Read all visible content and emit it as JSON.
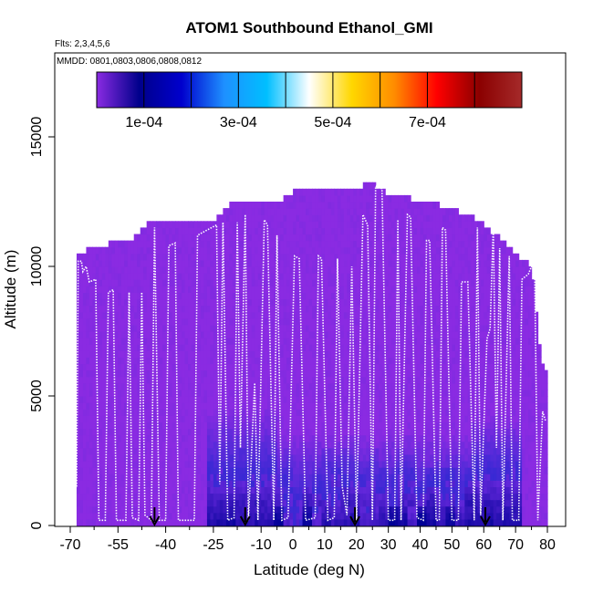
{
  "chart_data": {
    "type": "heatmap",
    "title": "ATOM1 Southbound Ethanol_GMI",
    "flights_note": "Flts: 2,3,4,5,6",
    "dates_note": "MMDD: 0801,0803,0806,0808,0812",
    "xlabel": "Latitude (deg N)",
    "ylabel": "Altitude (m)",
    "xlim": [
      -70,
      85
    ],
    "ylim": [
      0,
      17500
    ],
    "x_ticks": [
      "-70",
      "-55",
      "-40",
      "-25",
      "-10",
      "0",
      "10",
      "20",
      "30",
      "40",
      "50",
      "60",
      "70",
      "80"
    ],
    "x_tick_values": [
      -70,
      -55,
      -40,
      -25,
      -10,
      0,
      10,
      20,
      30,
      40,
      50,
      60,
      70,
      80
    ],
    "x_minor_ticks": [
      -62.5,
      -47.5,
      -32.5,
      -17.5,
      -5,
      5,
      15,
      25,
      35,
      45,
      55,
      65,
      75
    ],
    "y_ticks": [
      "0",
      "5000",
      "10000",
      "15000"
    ],
    "y_tick_values": [
      0,
      5000,
      10000,
      15000
    ],
    "colorbar": {
      "min": 0,
      "max": 0.0009,
      "boundaries": [
        0,
        0.0001,
        0.0002,
        0.0003,
        0.0004,
        0.0005,
        0.0006,
        0.0007,
        0.0008,
        0.0009
      ],
      "tick_labels": [
        "1e-04",
        "3e-04",
        "5e-04",
        "7e-04"
      ],
      "tick_values": [
        0.0001,
        0.0003,
        0.0005,
        0.0007
      ],
      "colors": [
        "#8a2be2",
        "#00008b",
        "#0000cd",
        "#1e90ff",
        "#00bfff",
        "#ffffff",
        "#ffd700",
        "#ff8c00",
        "#ff0000",
        "#8b0000",
        "#a52a2a"
      ]
    },
    "ceiling": [
      {
        "lat": -68,
        "alt": 10500
      },
      {
        "lat": -60,
        "alt": 10800
      },
      {
        "lat": -50,
        "alt": 11100
      },
      {
        "lat": -45,
        "alt": 11800
      },
      {
        "lat": -35,
        "alt": 11800
      },
      {
        "lat": -25,
        "alt": 11800
      },
      {
        "lat": -20,
        "alt": 12400
      },
      {
        "lat": -5,
        "alt": 12400
      },
      {
        "lat": 0,
        "alt": 12900
      },
      {
        "lat": 20,
        "alt": 12900
      },
      {
        "lat": 24,
        "alt": 13400
      },
      {
        "lat": 28,
        "alt": 12900
      },
      {
        "lat": 45,
        "alt": 12400
      },
      {
        "lat": 55,
        "alt": 12000
      },
      {
        "lat": 60,
        "alt": 11600
      },
      {
        "lat": 65,
        "alt": 11100
      },
      {
        "lat": 70,
        "alt": 10500
      },
      {
        "lat": 75,
        "alt": 10000
      },
      {
        "lat": 78,
        "alt": 6500
      },
      {
        "lat": 80,
        "alt": 5800
      }
    ],
    "flight_track": [
      [
        -68,
        1500
      ],
      [
        -67.5,
        10200
      ],
      [
        -66.5,
        10200
      ],
      [
        -66,
        9800
      ],
      [
        -65,
        10000
      ],
      [
        -64,
        9400
      ],
      [
        -62,
        9500
      ],
      [
        -61,
        200
      ],
      [
        -59,
        200
      ],
      [
        -58,
        9000
      ],
      [
        -56.5,
        9100
      ],
      [
        -55.5,
        200
      ],
      [
        -52.5,
        200
      ],
      [
        -51.5,
        9000
      ],
      [
        -50.5,
        300
      ],
      [
        -48.5,
        200
      ],
      [
        -47.5,
        9000
      ],
      [
        -46.5,
        400
      ],
      [
        -44.5,
        200
      ],
      [
        -43.5,
        11500
      ],
      [
        -42,
        200
      ],
      [
        -40,
        200
      ],
      [
        -39,
        10800
      ],
      [
        -37,
        10900
      ],
      [
        -36,
        200
      ],
      [
        -31,
        200
      ],
      [
        -30,
        11200
      ],
      [
        -27,
        11400
      ],
      [
        -24,
        11600
      ],
      [
        -23,
        1600
      ],
      [
        -22,
        11700
      ],
      [
        -20.5,
        200
      ],
      [
        -18.5,
        300
      ],
      [
        -17.5,
        11700
      ],
      [
        -16.5,
        3000
      ],
      [
        -15,
        12000
      ],
      [
        -14,
        200
      ],
      [
        -12,
        5500
      ],
      [
        -11,
        200
      ],
      [
        -9,
        11800
      ],
      [
        -8,
        11600
      ],
      [
        -6,
        200
      ],
      [
        -5,
        11200
      ],
      [
        -3.5,
        200
      ],
      [
        -1.5,
        300
      ],
      [
        0.5,
        10400
      ],
      [
        2,
        10300
      ],
      [
        4,
        200
      ],
      [
        7,
        300
      ],
      [
        8,
        10400
      ],
      [
        9,
        10300
      ],
      [
        11,
        200
      ],
      [
        13,
        300
      ],
      [
        14,
        10300
      ],
      [
        15.5,
        1500
      ],
      [
        17,
        400
      ],
      [
        18.5,
        10000
      ],
      [
        20,
        200
      ],
      [
        22,
        12000
      ],
      [
        23.5,
        11600
      ],
      [
        25,
        200
      ],
      [
        26,
        13100
      ],
      [
        28,
        13000
      ],
      [
        30,
        200
      ],
      [
        32,
        200
      ],
      [
        33,
        11800
      ],
      [
        34,
        200
      ],
      [
        36,
        12000
      ],
      [
        37,
        11900
      ],
      [
        39,
        300
      ],
      [
        41,
        200
      ],
      [
        42,
        11000
      ],
      [
        43,
        11000
      ],
      [
        45,
        200
      ],
      [
        46,
        200
      ],
      [
        47,
        11500
      ],
      [
        48,
        11400
      ],
      [
        50,
        200
      ],
      [
        52,
        200
      ],
      [
        53,
        9400
      ],
      [
        55,
        9400
      ],
      [
        57,
        200
      ],
      [
        58,
        11500
      ],
      [
        59,
        400
      ],
      [
        61,
        7200
      ],
      [
        62,
        7600
      ],
      [
        63,
        11500
      ],
      [
        64,
        3000
      ],
      [
        65,
        10700
      ],
      [
        66,
        200
      ],
      [
        68,
        10400
      ],
      [
        69,
        200
      ],
      [
        71,
        200
      ],
      [
        72,
        9500
      ],
      [
        74,
        9700
      ],
      [
        75,
        10000
      ],
      [
        76,
        9800
      ],
      [
        77,
        200
      ],
      [
        78.5,
        4400
      ],
      [
        79.5,
        4000
      ]
    ],
    "markers": [
      -43.5,
      -15,
      19.5,
      60.5
    ]
  }
}
